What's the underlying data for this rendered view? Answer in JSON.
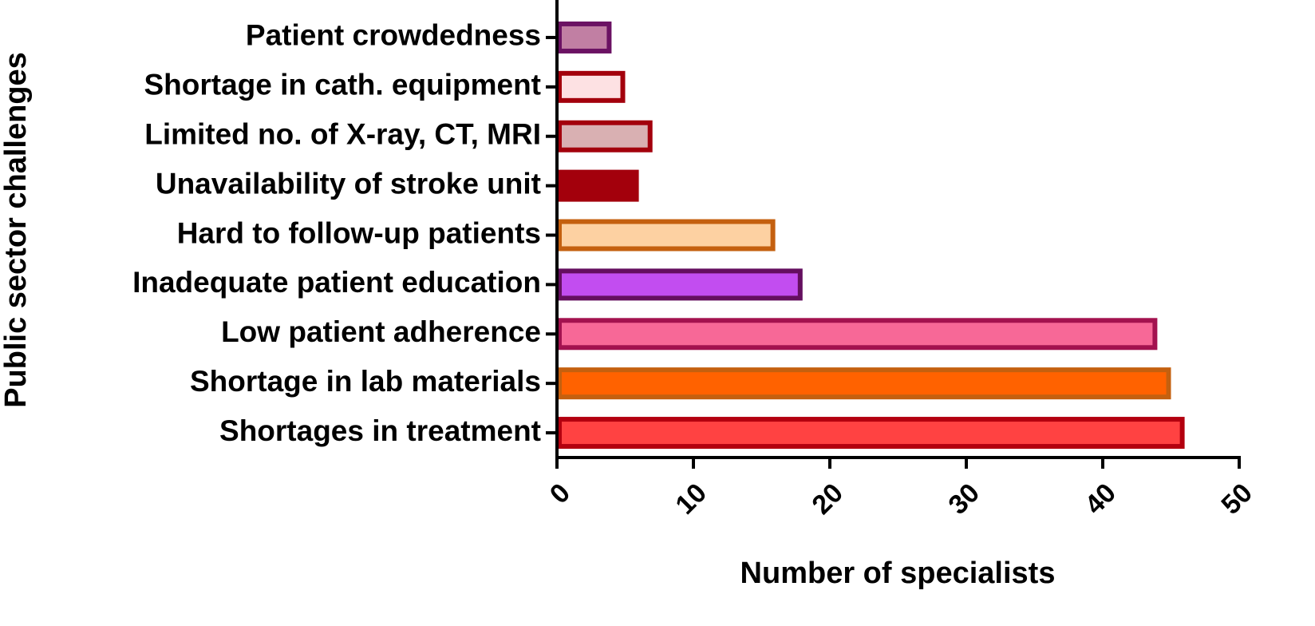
{
  "chart_data": {
    "type": "barh",
    "x_label": "Number of specialists",
    "y_label": "Public sector challenges",
    "categories": [
      "Patient crowdedness",
      "Shortage in cath. equipment",
      "Limited no. of X-ray, CT, MRI",
      "Unavailability of stroke unit",
      "Hard to follow-up patients",
      "Inadequate patient education",
      "Low patient adherence",
      "Shortage in lab materials",
      "Shortages in treatment"
    ],
    "values": [
      4,
      5,
      7,
      6,
      16,
      18,
      44,
      45,
      46
    ],
    "colors": [
      "#c17fa3",
      "#fde1e3",
      "#d9b0b2",
      "#a3000c",
      "#fdd1a2",
      "#c24df0",
      "#f76897",
      "#ff6200",
      "#ff4242"
    ],
    "edge_colors": [
      "#6b1263",
      "#a3000c",
      "#a3000c",
      "#a3000c",
      "#c4600f",
      "#640f5f",
      "#a3124f",
      "#c4600f",
      "#b3000f"
    ],
    "xlim": [
      0,
      50
    ],
    "xticks": [
      0,
      10,
      20,
      30,
      40,
      50
    ]
  }
}
